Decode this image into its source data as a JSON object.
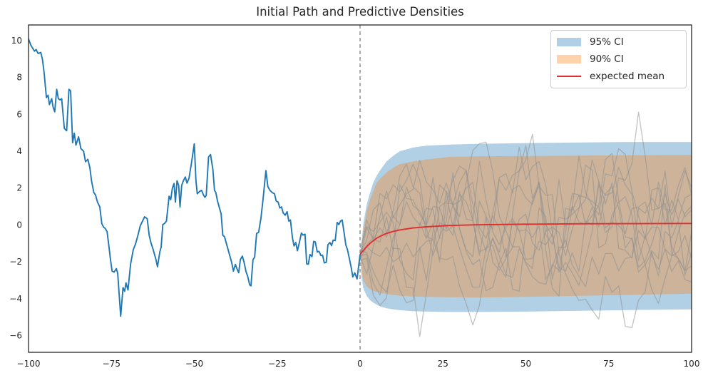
{
  "title": "Initial Path and Predictive Densities",
  "legend": {
    "items": [
      {
        "label": "95% CI",
        "swatch": "patch",
        "color": "#1f77b4",
        "alpha": 0.35
      },
      {
        "label": "90% CI",
        "swatch": "patch",
        "color": "#ff7f0e",
        "alpha": 0.35
      },
      {
        "label": "expected mean",
        "swatch": "line",
        "color": "#e02f2f",
        "alpha": 1
      }
    ]
  },
  "chart_data": {
    "type": "line",
    "title": "Initial Path and Predictive Densities",
    "xlim": [
      -100,
      100
    ],
    "ylim": [
      -6.91,
      10.85
    ],
    "grid": false,
    "legend_position": "upper right",
    "x_ticks": {
      "values": [
        -100,
        -75,
        -50,
        -25,
        0,
        25,
        50,
        75,
        100
      ],
      "labels": [
        "−100",
        "−75",
        "−50",
        "−25",
        "0",
        "25",
        "50",
        "75",
        "100"
      ]
    },
    "y_ticks": {
      "values": [
        10,
        8,
        6,
        4,
        2,
        0,
        -2,
        -4,
        -6
      ],
      "labels": [
        "10",
        "8",
        "6",
        "4",
        "2",
        "0",
        "−2",
        "−4",
        "−6"
      ]
    },
    "divider": {
      "x": 0,
      "color": "#808080",
      "style": "dashed"
    },
    "initial_path": {
      "name": "initial path",
      "color": "#1f77b4",
      "width": 1.9,
      "points": [
        [
          -100,
          10.1
        ],
        [
          -99.3,
          9.75
        ],
        [
          -98.2,
          9.43
        ],
        [
          -97.7,
          9.52
        ],
        [
          -97.1,
          9.3
        ],
        [
          -96.3,
          9.36
        ],
        [
          -95.8,
          8.98
        ],
        [
          -95.3,
          8.27
        ],
        [
          -94.6,
          6.91
        ],
        [
          -94.1,
          7.04
        ],
        [
          -93.7,
          6.53
        ],
        [
          -93,
          6.85
        ],
        [
          -92.6,
          6.4
        ],
        [
          -92.1,
          6.14
        ],
        [
          -91.5,
          7.36
        ],
        [
          -91,
          6.85
        ],
        [
          -90.5,
          6.79
        ],
        [
          -90,
          6.85
        ],
        [
          -89.2,
          5.24
        ],
        [
          -88.5,
          5.11
        ],
        [
          -87.8,
          7.36
        ],
        [
          -87.3,
          7.27
        ],
        [
          -86.7,
          4.46
        ],
        [
          -86.2,
          4.98
        ],
        [
          -85.7,
          4.33
        ],
        [
          -84.9,
          4.78
        ],
        [
          -84.2,
          4.14
        ],
        [
          -83.4,
          4.01
        ],
        [
          -82.8,
          3.43
        ],
        [
          -82.1,
          3.56
        ],
        [
          -81.5,
          3.11
        ],
        [
          -81,
          2.4
        ],
        [
          -80.3,
          1.76
        ],
        [
          -79.8,
          1.63
        ],
        [
          -79.2,
          1.24
        ],
        [
          -78.5,
          0.98
        ],
        [
          -77.9,
          0.08
        ],
        [
          -77.4,
          -0.11
        ],
        [
          -76.9,
          -0.18
        ],
        [
          -76.3,
          -0.37
        ],
        [
          -75.8,
          -1.08
        ],
        [
          -75.3,
          -1.85
        ],
        [
          -74.8,
          -2.5
        ],
        [
          -74.2,
          -2.56
        ],
        [
          -73.5,
          -2.37
        ],
        [
          -73.1,
          -2.63
        ],
        [
          -72.2,
          -4.95
        ],
        [
          -71.5,
          -3.4
        ],
        [
          -71,
          -3.6
        ],
        [
          -70.6,
          -3.14
        ],
        [
          -70,
          -3.53
        ],
        [
          -69.2,
          -2.11
        ],
        [
          -68.4,
          -1.34
        ],
        [
          -67.7,
          -1.02
        ],
        [
          -67,
          -0.56
        ],
        [
          -66.3,
          -0.05
        ],
        [
          -65,
          0.44
        ],
        [
          -64.2,
          0.34
        ],
        [
          -63.6,
          -0.56
        ],
        [
          -63.1,
          -0.95
        ],
        [
          -62.4,
          -1.34
        ],
        [
          -61.6,
          -1.85
        ],
        [
          -61.1,
          -2.27
        ],
        [
          -60.4,
          -1.47
        ],
        [
          -60,
          -1.21
        ],
        [
          -59.5,
          0.02
        ],
        [
          -59,
          0.08
        ],
        [
          -58.4,
          0.21
        ],
        [
          -58.1,
          0.72
        ],
        [
          -57.6,
          1.56
        ],
        [
          -57.1,
          1.37
        ],
        [
          -56.6,
          2.01
        ],
        [
          -56.1,
          2.25
        ],
        [
          -55.7,
          1.24
        ],
        [
          -55.2,
          2.4
        ],
        [
          -54.7,
          2.14
        ],
        [
          -54.3,
          0.98
        ],
        [
          -53.8,
          2.14
        ],
        [
          -53.3,
          2.4
        ],
        [
          -52.7,
          2.6
        ],
        [
          -52.2,
          2.27
        ],
        [
          -51.6,
          2.53
        ],
        [
          -50.9,
          3.3
        ],
        [
          -50,
          4.4
        ],
        [
          -49.5,
          2.4
        ],
        [
          -49.1,
          1.69
        ],
        [
          -48.4,
          1.82
        ],
        [
          -47.8,
          1.88
        ],
        [
          -47.3,
          1.65
        ],
        [
          -46.8,
          1.5
        ],
        [
          -46.4,
          1.6
        ],
        [
          -45.7,
          3.69
        ],
        [
          -45.1,
          3.82
        ],
        [
          -44.4,
          3.02
        ],
        [
          -43.9,
          1.88
        ],
        [
          -43.5,
          1.76
        ],
        [
          -43,
          1.3
        ],
        [
          -42.5,
          0.98
        ],
        [
          -41.9,
          0.6
        ],
        [
          -41.4,
          -0.56
        ],
        [
          -40.9,
          -0.63
        ],
        [
          -40.4,
          -0.95
        ],
        [
          -39.8,
          -1.34
        ],
        [
          -39.2,
          -1.73
        ],
        [
          -38.7,
          -2.05
        ],
        [
          -38.2,
          -2.5
        ],
        [
          -37.6,
          -2.14
        ],
        [
          -37.1,
          -2.39
        ],
        [
          -36.6,
          -2.59
        ],
        [
          -36.1,
          -1.88
        ],
        [
          -35.5,
          -1.69
        ],
        [
          -35,
          -2.01
        ],
        [
          -34.4,
          -2.53
        ],
        [
          -33.9,
          -2.78
        ],
        [
          -33.3,
          -3.25
        ],
        [
          -32.9,
          -3.3
        ],
        [
          -32.3,
          -1.88
        ],
        [
          -31.8,
          -1.75
        ],
        [
          -31.2,
          -0.46
        ],
        [
          -30.6,
          -0.4
        ],
        [
          -29.9,
          0.36
        ],
        [
          -29.2,
          1.5
        ],
        [
          -28.4,
          2.95
        ],
        [
          -27.8,
          2.08
        ],
        [
          -27.2,
          1.88
        ],
        [
          -26.5,
          1.76
        ],
        [
          -25.8,
          1.69
        ],
        [
          -25.3,
          1.3
        ],
        [
          -24.7,
          1.24
        ],
        [
          -24.2,
          0.92
        ],
        [
          -23.7,
          0.98
        ],
        [
          -23.2,
          0.66
        ],
        [
          -22.6,
          0.53
        ],
        [
          -22,
          0.72
        ],
        [
          -21.5,
          0.21
        ],
        [
          -21,
          0.27
        ],
        [
          -20.4,
          -0.69
        ],
        [
          -19.9,
          -1.14
        ],
        [
          -19.4,
          -0.95
        ],
        [
          -18.9,
          -1.4
        ],
        [
          -18.3,
          -0.95
        ],
        [
          -17.7,
          -0.44
        ],
        [
          -17.2,
          -0.55
        ],
        [
          -16.6,
          -0.5
        ],
        [
          -16.1,
          -2.11
        ],
        [
          -15.6,
          -2.13
        ],
        [
          -15.1,
          -1.6
        ],
        [
          -14.5,
          -1.72
        ],
        [
          -14,
          -0.89
        ],
        [
          -13.5,
          -0.92
        ],
        [
          -12.9,
          -1.47
        ],
        [
          -12.4,
          -1.43
        ],
        [
          -11.8,
          -1.66
        ],
        [
          -11.3,
          -1.64
        ],
        [
          -10.8,
          -2.05
        ],
        [
          -10.2,
          -2.03
        ],
        [
          -9.7,
          -1.08
        ],
        [
          -9.1,
          -0.95
        ],
        [
          -8.6,
          -1.12
        ],
        [
          -8.1,
          -0.82
        ],
        [
          -7.5,
          -0.85
        ],
        [
          -6.9,
          0.14
        ],
        [
          -6.4,
          0.02
        ],
        [
          -5.9,
          0.21
        ],
        [
          -5.4,
          0.27
        ],
        [
          -4.8,
          -0.44
        ],
        [
          -4.3,
          -1.08
        ],
        [
          -3.8,
          -1.34
        ],
        [
          -3.2,
          -1.85
        ],
        [
          -2.6,
          -2.37
        ],
        [
          -2.2,
          -2.82
        ],
        [
          -1.6,
          -2.6
        ],
        [
          -0.9,
          -2.93
        ],
        [
          0,
          -1.62
        ]
      ]
    },
    "expected_mean": {
      "name": "expected mean",
      "color": "#e02f2f",
      "width": 1.9,
      "points": [
        [
          0,
          -1.6
        ],
        [
          1,
          -1.38
        ],
        [
          2,
          -1.18
        ],
        [
          3,
          -1.0
        ],
        [
          4,
          -0.85
        ],
        [
          5,
          -0.72
        ],
        [
          6,
          -0.62
        ],
        [
          8,
          -0.46
        ],
        [
          10,
          -0.35
        ],
        [
          12,
          -0.27
        ],
        [
          16,
          -0.16
        ],
        [
          20,
          -0.1
        ],
        [
          27,
          -0.03
        ],
        [
          35,
          0.01
        ],
        [
          50,
          0.04
        ],
        [
          65,
          0.06
        ],
        [
          80,
          0.07
        ],
        [
          100,
          0.08
        ]
      ]
    },
    "bands": [
      {
        "name": "95% CI",
        "color": "#1f77b4",
        "alpha": 0.35,
        "points": [
          [
            0,
            -1.6,
            -1.6
          ],
          [
            0.5,
            -0.9,
            -2.9
          ],
          [
            1,
            0.1,
            -3.45
          ],
          [
            2,
            1.1,
            -3.85
          ],
          [
            3,
            1.75,
            -4.08
          ],
          [
            4,
            2.3,
            -4.22
          ],
          [
            5,
            2.66,
            -4.32
          ],
          [
            6,
            2.95,
            -4.42
          ],
          [
            8,
            3.45,
            -4.52
          ],
          [
            10,
            3.75,
            -4.58
          ],
          [
            12,
            4.0,
            -4.62
          ],
          [
            16,
            4.2,
            -4.68
          ],
          [
            20,
            4.3,
            -4.7
          ],
          [
            27,
            4.36,
            -4.72
          ],
          [
            35,
            4.4,
            -4.72
          ],
          [
            50,
            4.44,
            -4.7
          ],
          [
            65,
            4.47,
            -4.66
          ],
          [
            80,
            4.5,
            -4.62
          ],
          [
            100,
            4.5,
            -4.58
          ]
        ]
      },
      {
        "name": "90% CI",
        "color": "#ff7f0e",
        "alpha": 0.35,
        "points": [
          [
            0,
            -1.6,
            -1.6
          ],
          [
            0.5,
            -1.15,
            -2.6
          ],
          [
            1,
            -0.3,
            -3.0
          ],
          [
            2,
            0.75,
            -3.33
          ],
          [
            3,
            1.35,
            -3.48
          ],
          [
            4,
            1.85,
            -3.57
          ],
          [
            5,
            2.27,
            -3.63
          ],
          [
            6,
            2.5,
            -3.68
          ],
          [
            8,
            2.85,
            -3.74
          ],
          [
            10,
            3.1,
            -3.8
          ],
          [
            12,
            3.3,
            -3.84
          ],
          [
            16,
            3.45,
            -3.88
          ],
          [
            20,
            3.55,
            -3.9
          ],
          [
            27,
            3.69,
            -3.92
          ],
          [
            35,
            3.72,
            -3.94
          ],
          [
            50,
            3.74,
            -3.9
          ],
          [
            65,
            3.76,
            -3.85
          ],
          [
            80,
            3.78,
            -3.8
          ],
          [
            100,
            3.8,
            -3.73
          ]
        ]
      }
    ],
    "sample_paths": {
      "count": 10,
      "color": "#8f8f8f",
      "alpha": 0.55,
      "width": 1.3,
      "x_start": 0,
      "x_end": 100,
      "step": 2,
      "start_y": -1.7,
      "start_jitter": 0.25,
      "ar_coeff": 0.74,
      "step_sd": 1.35,
      "y_clip": [
        -6.35,
        6.2
      ],
      "seed": 42
    }
  }
}
